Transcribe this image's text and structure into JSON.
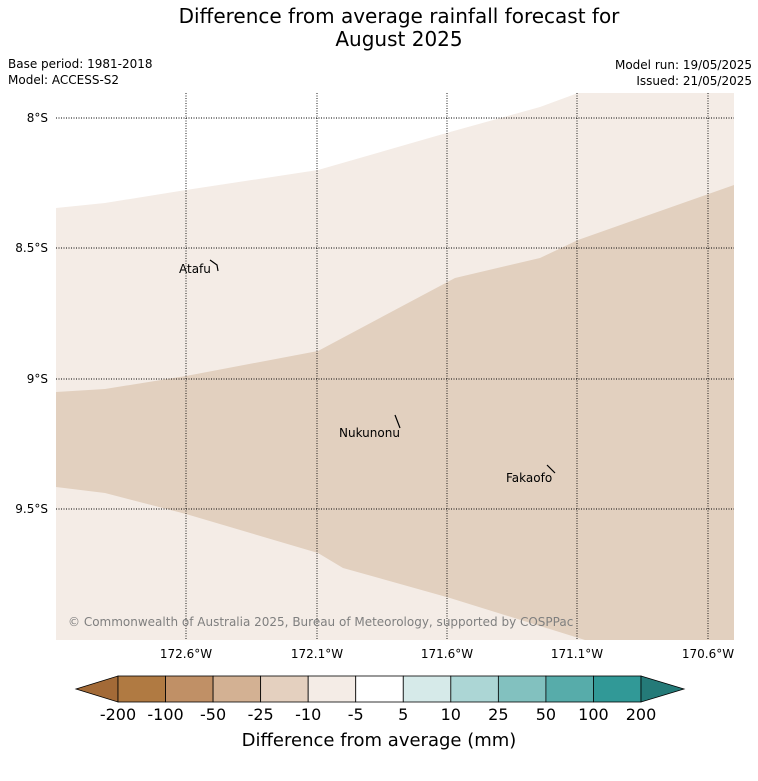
{
  "title_line1": "Difference from average rainfall forecast for",
  "title_line2": "August 2025",
  "base_period": "Base period: 1981-2018",
  "model": "Model: ACCESS-S2",
  "model_run": "Model run: 19/05/2025",
  "issued": "Issued: 21/05/2025",
  "copyright": "© Commonwealth of Australia 2025, Bureau of Meteorology, supported by COSPPac",
  "lat_labels": [
    "8°S",
    "8.5°S",
    "9°S",
    "9.5°S"
  ],
  "lon_labels": [
    "172.6°W",
    "172.1°W",
    "171.6°W",
    "171.1°W",
    "170.6°W"
  ],
  "places": {
    "atafu": "Atafu",
    "nukunonu": "Nukunonu",
    "fakaofo": "Fakaofo"
  },
  "map_colors": {
    "light_band": "#f4ece6",
    "medium_band": "#e2d0bf"
  },
  "colorbar": {
    "title": "Difference from average (mm)",
    "tick_labels": [
      "-200",
      "-100",
      "-50",
      "-25",
      "-10",
      "-5",
      "5",
      "10",
      "25",
      "50",
      "100",
      "200"
    ],
    "colors": [
      "#a36a37",
      "#b07a42",
      "#c09066",
      "#d3b193",
      "#e4d0bf",
      "#f4ece6",
      "#ffffff",
      "#d6eae9",
      "#acd6d5",
      "#82c1bf",
      "#57acaa",
      "#319997",
      "#247a78"
    ]
  }
}
